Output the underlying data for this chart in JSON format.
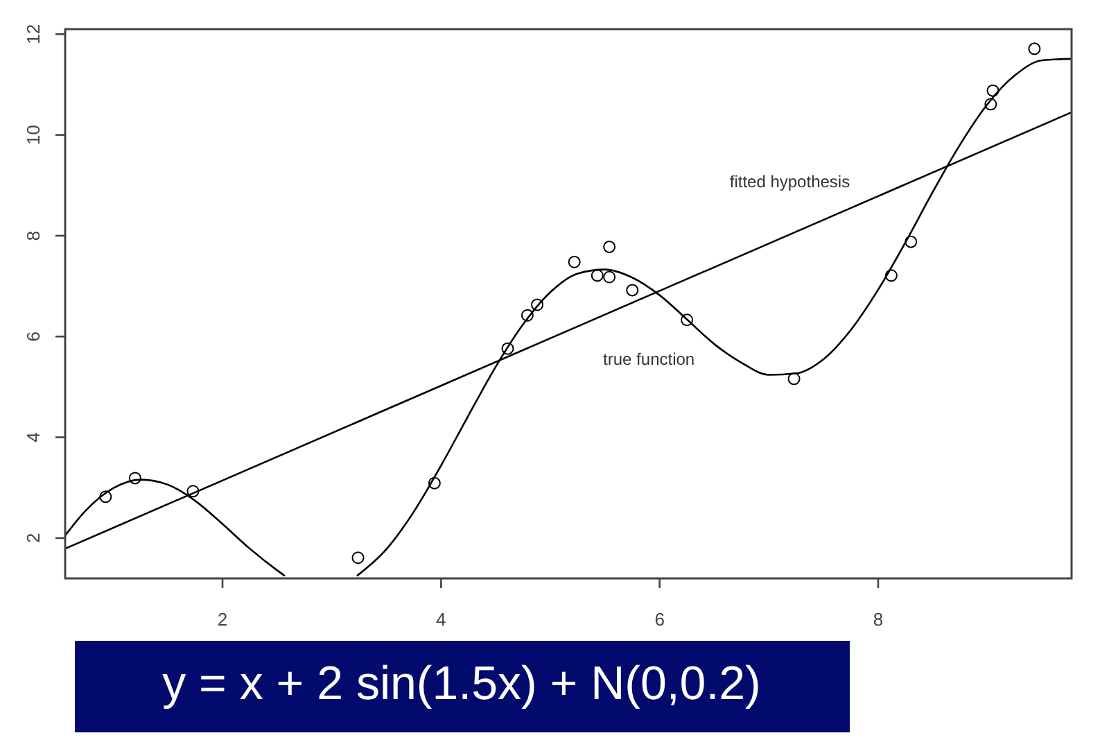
{
  "chart_data": {
    "type": "scatter",
    "xlim": [
      0.56,
      9.77
    ],
    "ylim": [
      1.2,
      12.1
    ],
    "xticks": [
      2,
      4,
      6,
      8
    ],
    "yticks": [
      2,
      4,
      6,
      8,
      10,
      12
    ],
    "grid": false,
    "line_style": "solid",
    "series": [
      {
        "color": "#000000",
        "marker": "circle",
        "x": [
          0.93,
          1.2,
          1.73,
          3.24,
          3.94,
          4.61,
          4.79,
          4.88,
          5.22,
          5.43,
          5.54,
          5.54,
          5.75,
          6.25,
          7.23,
          8.12,
          8.3,
          9.03,
          9.05,
          9.43
        ],
        "values": [
          2.82,
          3.19,
          2.93,
          1.61,
          3.09,
          5.76,
          6.42,
          6.63,
          7.48,
          7.21,
          7.78,
          7.18,
          6.92,
          6.33,
          5.16,
          7.21,
          7.88,
          10.61,
          10.88,
          11.71
        ]
      },
      {
        "type": "line",
        "name": "fitted hypothesis",
        "color": "#000000",
        "x": [
          0.56,
          9.77
        ],
        "values": [
          1.79,
          10.45
        ]
      },
      {
        "type": "line",
        "name": "true function",
        "color": "#000000",
        "x": [
          0.56,
          0.75,
          1.0,
          1.25,
          1.5,
          1.75,
          2.0,
          2.25,
          2.5,
          2.57,
          2.9,
          3.23,
          3.5,
          3.75,
          4.0,
          4.25,
          4.5,
          4.75,
          5.0,
          5.25,
          5.5,
          5.75,
          6.0,
          6.25,
          6.5,
          6.75,
          7.0,
          7.25,
          7.5,
          7.75,
          8.0,
          8.25,
          8.5,
          8.75,
          9.0,
          9.25,
          9.5,
          9.77
        ],
        "values": [
          2.05,
          2.55,
          2.99,
          3.16,
          3.06,
          2.74,
          2.28,
          1.79,
          1.36,
          1.25,
          null,
          1.25,
          1.78,
          2.52,
          3.44,
          4.43,
          5.4,
          6.24,
          6.88,
          7.25,
          7.33,
          7.17,
          6.82,
          6.34,
          5.85,
          5.48,
          5.24,
          5.27,
          5.55,
          6.13,
          6.93,
          7.87,
          8.87,
          9.81,
          10.61,
          11.18,
          11.48,
          11.51
        ]
      }
    ],
    "annotations": [
      "y = x + 2 sin(1.5x) + N(0,0.2)"
    ]
  }
}
